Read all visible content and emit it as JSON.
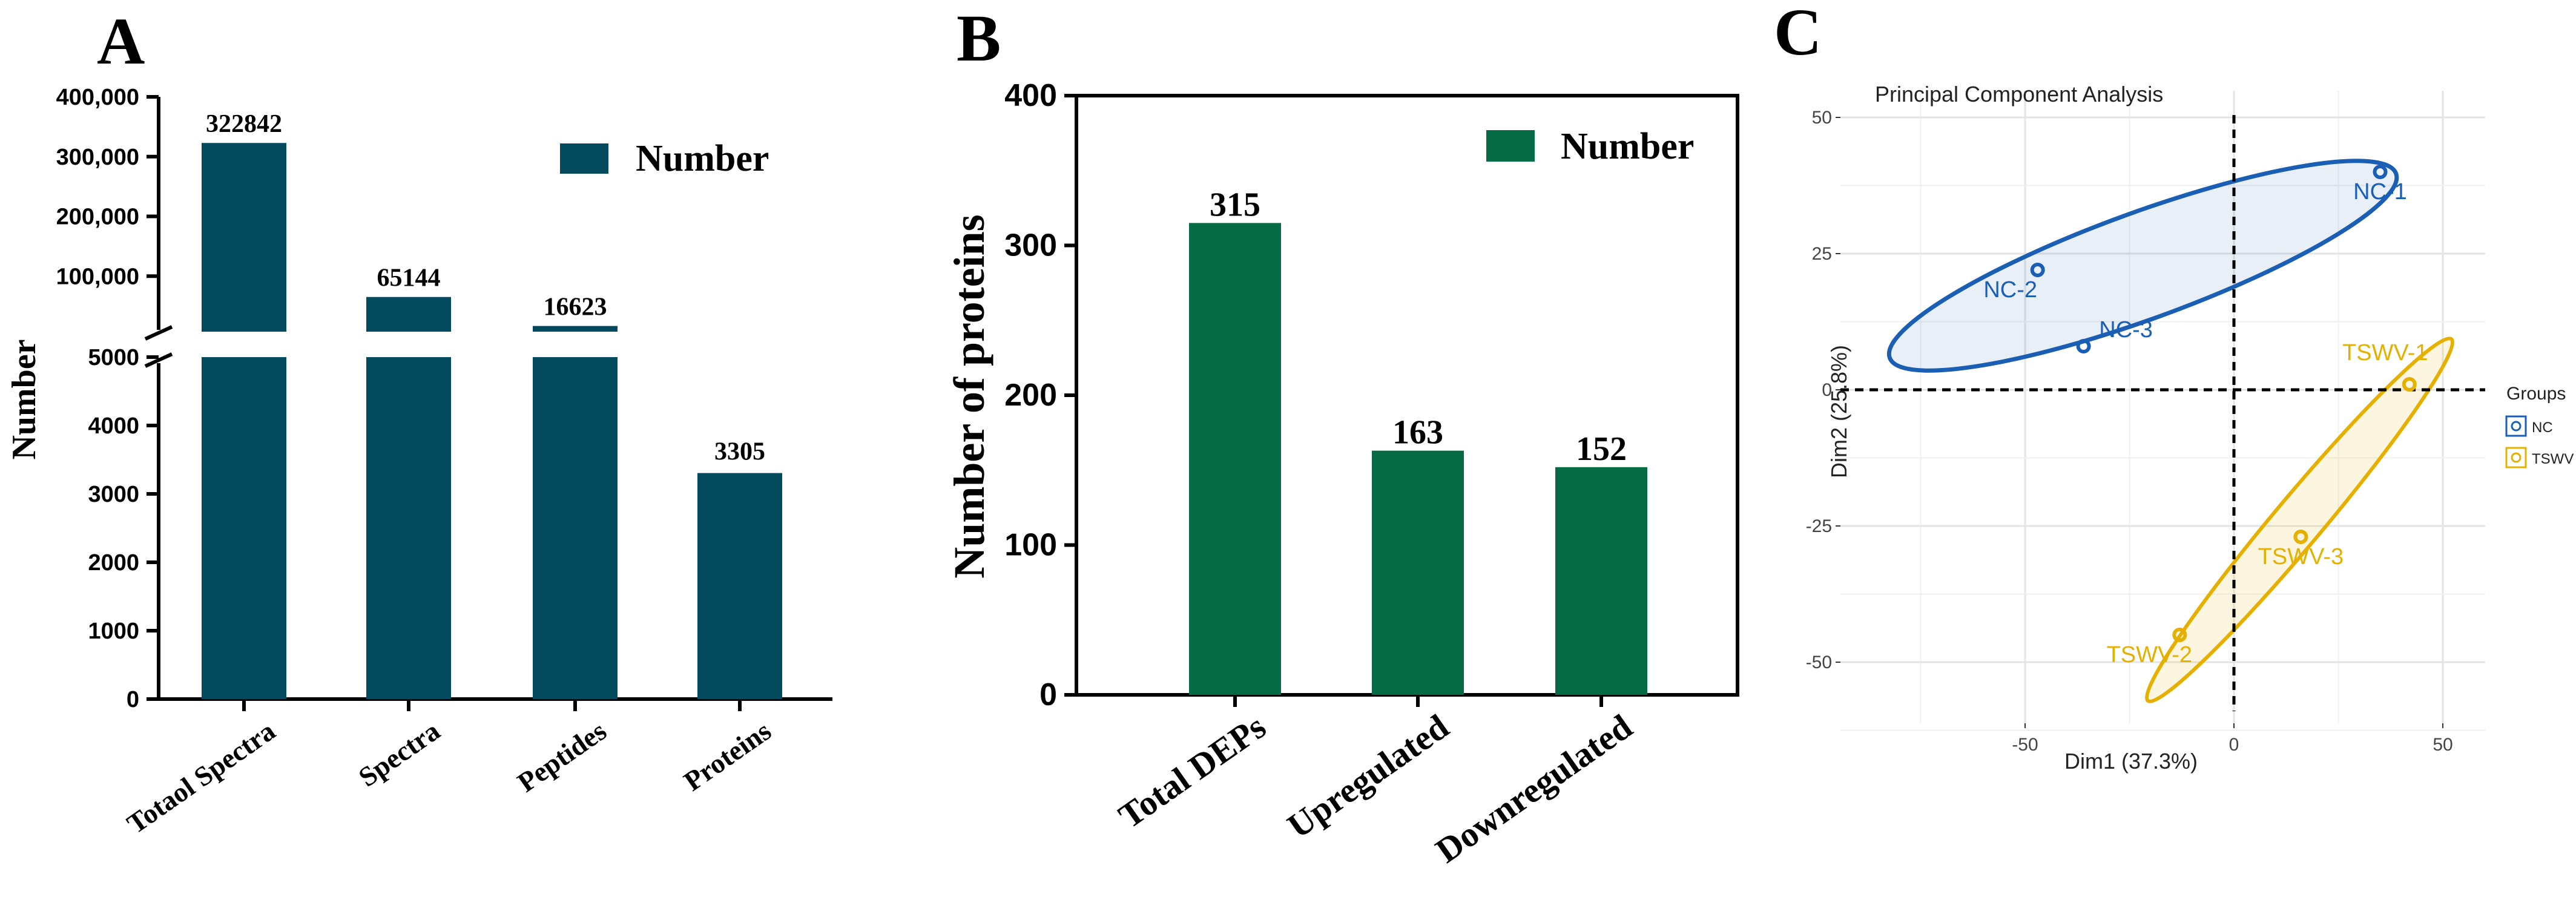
{
  "panels": [
    {
      "letter": "A",
      "chart_data": {
        "type": "bar",
        "ylabel": "Number",
        "categories": [
          "Totaol Spectra",
          "Spectra",
          "Peptides",
          "Proteins"
        ],
        "values": [
          322842,
          65144,
          16623,
          3305
        ],
        "value_labels": [
          "322842",
          "65144",
          "16623",
          "3305"
        ],
        "legend": "Number",
        "legend_position": "top-right",
        "axis_break": [
          5000,
          20000
        ],
        "lower_ticks": [
          "0",
          "1000",
          "2000",
          "3000",
          "4000",
          "5000"
        ],
        "upper_ticks": [
          "100,000",
          "200,000",
          "300,000",
          "400,000"
        ],
        "lower_range": [
          0,
          5000
        ],
        "upper_range": [
          0,
          400000
        ],
        "color": "#034a5e"
      }
    },
    {
      "letter": "B",
      "chart_data": {
        "type": "bar",
        "ylabel": "Number of proteins",
        "categories": [
          "Total DEPs",
          "Upregulated",
          "Downregulated"
        ],
        "values": [
          315,
          163,
          152
        ],
        "value_labels": [
          "315",
          "163",
          "152"
        ],
        "legend": "Number",
        "legend_position": "top-right",
        "yticks": [
          "0",
          "100",
          "200",
          "300",
          "400"
        ],
        "ylim": [
          0,
          400
        ],
        "color": "#046b45"
      }
    },
    {
      "letter": "C",
      "chart_data": {
        "type": "scatter",
        "title": "Principal Component Analysis",
        "xlabel": "Dim1 (37.3%)",
        "ylabel": "Dim2 (25.8%)",
        "xticks": [
          "-50",
          "0",
          "50"
        ],
        "yticks": [
          "-50",
          "-25",
          "0",
          "25",
          "50"
        ],
        "xlim": [
          -90,
          60
        ],
        "ylim": [
          -60,
          52
        ],
        "grid": true,
        "legend_title": "Groups",
        "legend_position": "right",
        "series": [
          {
            "name": "NC",
            "color": "#1a5fb4",
            "points": [
              {
                "label": "NC-1",
                "x": 35,
                "y": 40
              },
              {
                "label": "NC-2",
                "x": -47,
                "y": 22
              },
              {
                "label": "NC-3",
                "x": -36,
                "y": 8
              }
            ]
          },
          {
            "name": "TSWV",
            "color": "#e5b000",
            "points": [
              {
                "label": "TSWV-1",
                "x": 42,
                "y": 1
              },
              {
                "label": "TSWV-2",
                "x": -13,
                "y": -45
              },
              {
                "label": "TSWV-3",
                "x": 16,
                "y": -27
              }
            ]
          }
        ]
      }
    }
  ]
}
